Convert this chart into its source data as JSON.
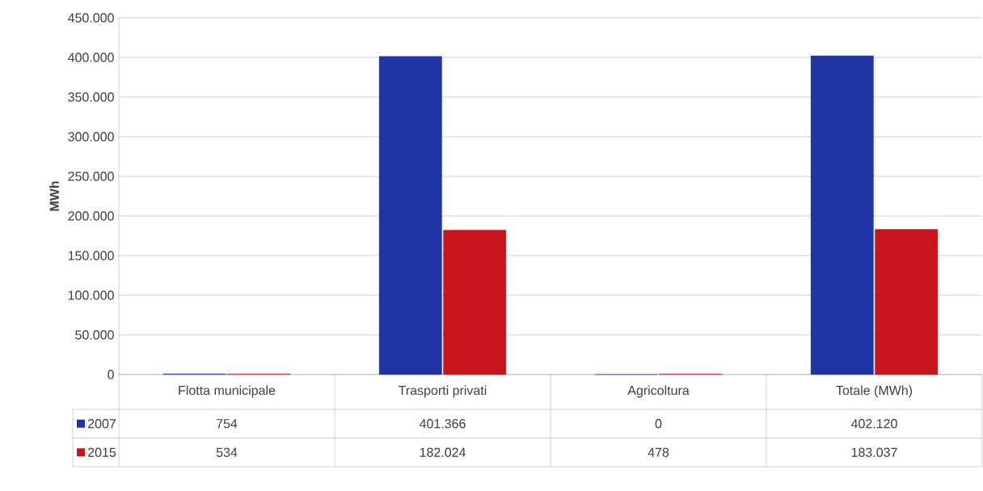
{
  "chart_data": {
    "type": "bar",
    "ylabel": "MWh",
    "categories": [
      "Flotta municipale",
      "Trasporti privati",
      "Agricoltura",
      "Totale (MWh)"
    ],
    "series": [
      {
        "name": "2007",
        "color": "#1f35a5",
        "values": [
          754,
          401366,
          0,
          402120
        ],
        "value_labels": [
          "754",
          "401.366",
          "0",
          "402.120"
        ]
      },
      {
        "name": "2015",
        "color": "#c8141c",
        "values": [
          534,
          182024,
          478,
          183037
        ],
        "value_labels": [
          "534",
          "182.024",
          "478",
          "183.037"
        ]
      }
    ],
    "ylim": [
      0,
      450000
    ],
    "yticks": [
      {
        "value": 0,
        "label": "0"
      },
      {
        "value": 50000,
        "label": "50.000"
      },
      {
        "value": 100000,
        "label": "100.000"
      },
      {
        "value": 150000,
        "label": "150.000"
      },
      {
        "value": 200000,
        "label": "200.000"
      },
      {
        "value": 250000,
        "label": "250.000"
      },
      {
        "value": 300000,
        "label": "300.000"
      },
      {
        "value": 350000,
        "label": "350.000"
      },
      {
        "value": 400000,
        "label": "400.000"
      },
      {
        "value": 450000,
        "label": "450.000"
      }
    ],
    "grid": "y",
    "legend": "bottom left"
  }
}
